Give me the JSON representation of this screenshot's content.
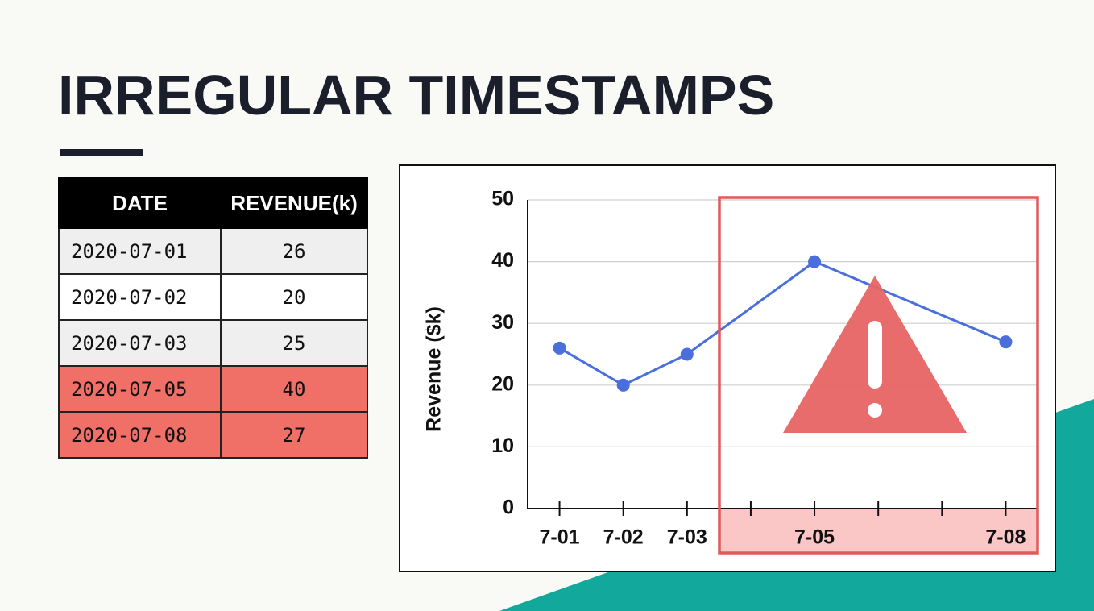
{
  "title": "IRREGULAR TIMESTAMPS",
  "table": {
    "columns": [
      "DATE",
      "REVENUE(k)"
    ],
    "rows": [
      [
        "2020-07-01",
        "26"
      ],
      [
        "2020-07-02",
        "20"
      ],
      [
        "2020-07-03",
        "25"
      ],
      [
        "2020-07-05",
        "40"
      ],
      [
        "2020-07-08",
        "27"
      ]
    ]
  },
  "chart_data": {
    "type": "line",
    "y_label": "Revenue ($k)",
    "x": [
      1,
      2,
      3,
      5,
      8
    ],
    "series": [
      {
        "color": "#4a6fdc",
        "values": [
          26,
          20,
          25,
          40,
          27
        ]
      }
    ],
    "xlim": [
      0.5,
      8.5
    ],
    "xticks": [
      {
        "value": 1,
        "label": "7-01"
      },
      {
        "value": 2,
        "label": "7-02"
      },
      {
        "value": 3,
        "label": "7-03"
      },
      {
        "value": 4,
        "label": null
      },
      {
        "value": 5,
        "label": "7-05"
      },
      {
        "value": 6,
        "label": null
      },
      {
        "value": 7,
        "label": null
      },
      {
        "value": 8,
        "label": "7-08"
      }
    ],
    "ylim": [
      0,
      50
    ],
    "yticks": [
      0,
      10,
      20,
      30,
      40,
      50
    ],
    "grid": true
  }
}
